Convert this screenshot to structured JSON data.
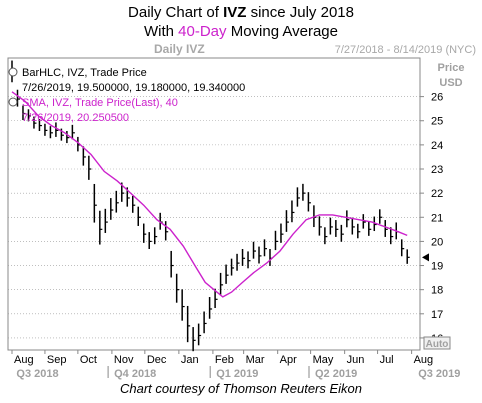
{
  "title": {
    "line1_prefix": "Daily Chart of ",
    "line1_ticker": "IVZ",
    "line1_suffix": " since July 2018",
    "line2_prefix": "With ",
    "line2_highlight": "40-Day",
    "line2_suffix": " Moving Average"
  },
  "header": {
    "watermark": "Daily IVZ",
    "date_range": "7/27/2018 - 8/14/2019 (NYC)"
  },
  "legend": {
    "price_series": "BarHLC, IVZ, Trade Price",
    "price_values": "7/26/2019, 19.500000, 19.180000, 19.340000",
    "sma_series": "SMA, IVZ, Trade Price(Last), 40",
    "sma_values": "7/26/2019, 20.250500"
  },
  "axis": {
    "price_label": "Price",
    "currency_label": "USD",
    "auto_label": "Auto"
  },
  "footer": "Chart courtesy of Thomson Reuters Eikon",
  "colors": {
    "bars": "#000000",
    "sma": "#cc22cc",
    "grid": "#999999",
    "label_gray": "#a0a0a0"
  },
  "chart_data": {
    "type": "line",
    "y_ticks": [
      16,
      17,
      18,
      19,
      20,
      21,
      22,
      23,
      24,
      25,
      26
    ],
    "ylim": [
      15.5,
      27.6
    ],
    "months": [
      "Aug",
      "Sep",
      "Oct",
      "Nov",
      "Dec",
      "Jan",
      "Feb",
      "Mar",
      "Apr",
      "May",
      "Jun",
      "Jul",
      "Aug"
    ],
    "quarters": [
      "Q3 2018",
      "Q4 2018",
      "Q1 2019",
      "Q2 2019",
      "Q3 2019"
    ],
    "price_current": 19.34,
    "series": [
      {
        "name": "BarHLC, IVZ, Trade Price",
        "kind": "hlc_bars",
        "x": [
          0,
          5,
          10,
          15,
          20,
          25,
          30,
          35,
          40,
          45,
          50,
          55,
          60,
          65,
          70,
          75,
          80,
          85,
          90,
          95,
          100,
          105,
          110,
          115,
          120,
          125,
          130,
          135,
          140,
          145,
          150,
          155,
          160,
          165,
          170,
          175,
          180,
          185,
          190,
          195,
          200,
          205,
          210,
          215,
          220,
          225,
          230,
          235,
          240,
          245,
          250,
          255,
          260,
          265,
          270,
          275,
          280,
          285,
          290,
          295,
          300,
          305,
          310,
          315,
          320,
          325,
          330,
          335,
          340,
          345,
          350,
          355,
          360
        ],
        "close": [
          27.0,
          25.9,
          25.3,
          25.2,
          24.9,
          24.8,
          24.6,
          24.5,
          24.6,
          24.4,
          24.3,
          24.5,
          24.0,
          23.5,
          23.0,
          21.5,
          20.5,
          20.8,
          21.3,
          21.6,
          22.0,
          21.8,
          21.5,
          21.0,
          20.3,
          20.0,
          20.2,
          20.8,
          20.4,
          19.0,
          18.0,
          17.3,
          16.5,
          15.9,
          16.1,
          16.6,
          17.2,
          17.6,
          18.2,
          18.6,
          18.9,
          19.1,
          19.3,
          19.2,
          19.6,
          19.4,
          19.7,
          19.3,
          20.0,
          20.3,
          20.8,
          21.2,
          21.8,
          22.0,
          21.6,
          21.0,
          20.6,
          20.2,
          20.6,
          20.5,
          20.3,
          20.9,
          20.6,
          20.4,
          20.8,
          20.5,
          20.7,
          21.0,
          20.5,
          20.2,
          20.4,
          19.7,
          19.34
        ],
        "range": [
          0.9,
          0.7,
          0.6,
          0.5,
          0.5,
          0.5,
          0.5,
          0.5,
          0.6,
          0.5,
          0.5,
          0.6,
          0.6,
          0.8,
          1.0,
          1.6,
          1.4,
          1.0,
          0.9,
          0.9,
          0.8,
          0.8,
          0.7,
          0.8,
          0.8,
          0.7,
          0.7,
          0.7,
          0.8,
          1.1,
          1.2,
          1.3,
          1.5,
          1.0,
          0.9,
          0.9,
          0.9,
          0.8,
          0.9,
          0.8,
          0.7,
          0.7,
          0.7,
          0.7,
          0.7,
          0.7,
          0.7,
          0.7,
          0.8,
          0.8,
          0.9,
          0.9,
          0.8,
          0.7,
          0.8,
          0.9,
          0.8,
          0.7,
          0.7,
          0.7,
          0.7,
          0.7,
          0.7,
          0.6,
          0.6,
          0.6,
          0.6,
          0.6,
          0.7,
          0.7,
          0.7,
          0.7,
          0.6
        ]
      },
      {
        "name": "SMA, IVZ, Trade Price(Last), 40",
        "kind": "line",
        "x": [
          0,
          12,
          24,
          36,
          48,
          60,
          72,
          84,
          96,
          108,
          120,
          132,
          144,
          156,
          168,
          176,
          184,
          192,
          200,
          210,
          220,
          232,
          244,
          256,
          268,
          280,
          292,
          304,
          316,
          328,
          340,
          352,
          360
        ],
        "y": [
          26.2,
          25.8,
          25.2,
          24.8,
          24.5,
          24.1,
          23.6,
          22.9,
          22.5,
          22.0,
          21.5,
          20.9,
          20.5,
          19.8,
          18.9,
          18.3,
          18.0,
          17.7,
          17.9,
          18.3,
          18.7,
          19.1,
          19.6,
          20.3,
          20.9,
          21.1,
          21.1,
          21.0,
          20.9,
          20.8,
          20.6,
          20.4,
          20.25
        ]
      }
    ]
  }
}
